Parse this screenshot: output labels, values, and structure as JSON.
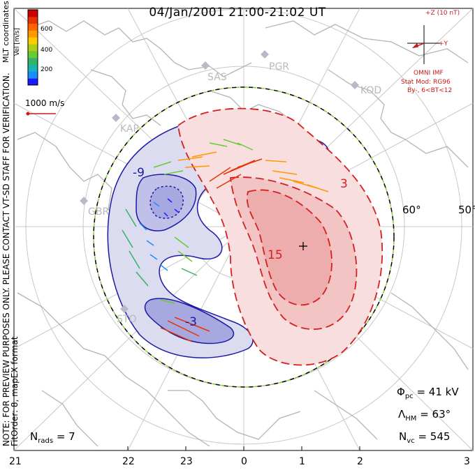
{
  "title": "04/Jan/2001 21:00-21:02 UT",
  "side_note": {
    "line1": "MLT coordinates",
    "line2": "NOTE: FOR PREVIEW PURPOSES ONLY. PLEASE CONTACT VT-SD STAFF FOR VERIFICATION.",
    "line3": "FitOrder: 8, mapEX format"
  },
  "colorbar": {
    "label": "Vel [m/s]",
    "ticks": [
      "600",
      "400",
      "200"
    ],
    "colors": [
      "#1a1aff",
      "#1a8cff",
      "#1ab3b3",
      "#33b366",
      "#66cc33",
      "#b3cc1a",
      "#ffcc00",
      "#ff9900",
      "#ff6600",
      "#e63300",
      "#cc0000"
    ]
  },
  "reference_vector": "1000 m/s",
  "imf": {
    "z_label": "+Z (10 nT)",
    "y_label": "+Y",
    "source": "OMNI IMF",
    "model": "Stat Mod: RG96",
    "condition": "By-, 6<BT<12"
  },
  "radars": [
    "SAS",
    "PGR",
    "KOD",
    "KAP",
    "GBR",
    "STO"
  ],
  "latitude_labels": [
    "60°",
    "50°"
  ],
  "contour_labels": [
    "-9",
    "-3",
    "3",
    "15"
  ],
  "stats": {
    "phi_symbol": "Φ",
    "phi_sub": "pc",
    "phi_value": "= 41 kV",
    "lambda_symbol": "Λ",
    "lambda_sub": "HM",
    "lambda_value": "= 63°",
    "nvc_symbol": "N",
    "nvc_sub": "vc",
    "nvc_value": "= 545",
    "nrads_symbol": "N",
    "nrads_sub": "rads",
    "nrads_value": "= 7"
  },
  "mlt_axis": [
    "21",
    "22",
    "23",
    "0",
    "1",
    "2",
    "3"
  ],
  "colors": {
    "negative_fill": "#c8c8ec",
    "negative_line": "#1a1aa6",
    "positive_fill": "#f5c4c4",
    "positive_line": "#d42020",
    "grid": "#c8c8c8",
    "coast": "#b4b4b4"
  }
}
